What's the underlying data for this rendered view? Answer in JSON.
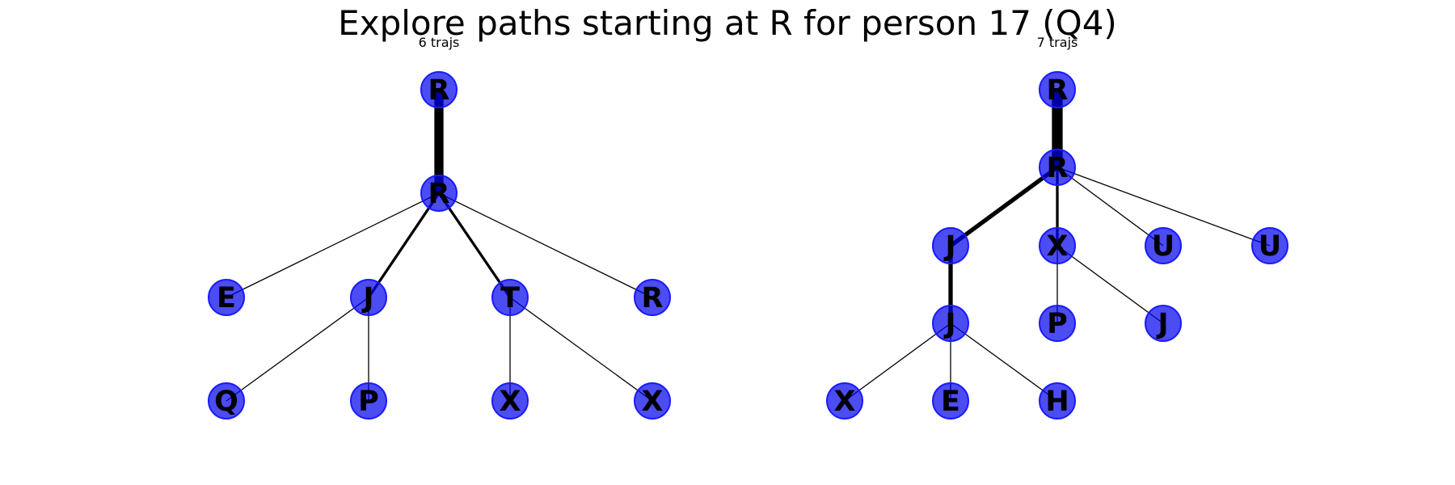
{
  "title": "Explore paths starting at R for person 17 (Q4)",
  "colors": {
    "node_fill": "#0000ee",
    "node_stroke": "#1a1aff",
    "edge": "#000000",
    "background": "#ffffff"
  },
  "trees": [
    {
      "subtitle": "6 trajs",
      "nodes": [
        {
          "id": "a0",
          "label": "R"
        },
        {
          "id": "a1",
          "label": "R"
        },
        {
          "id": "a2",
          "label": "E"
        },
        {
          "id": "a3",
          "label": "J"
        },
        {
          "id": "a4",
          "label": "T"
        },
        {
          "id": "a5",
          "label": "R"
        },
        {
          "id": "a6",
          "label": "Q"
        },
        {
          "id": "a7",
          "label": "P"
        },
        {
          "id": "a8",
          "label": "X"
        },
        {
          "id": "a9",
          "label": "X"
        }
      ],
      "edges": [
        {
          "from": "a0",
          "to": "a1",
          "weight": 6
        },
        {
          "from": "a1",
          "to": "a2",
          "weight": 1
        },
        {
          "from": "a1",
          "to": "a3",
          "weight": 2
        },
        {
          "from": "a1",
          "to": "a4",
          "weight": 2
        },
        {
          "from": "a1",
          "to": "a5",
          "weight": 1
        },
        {
          "from": "a3",
          "to": "a6",
          "weight": 1
        },
        {
          "from": "a3",
          "to": "a7",
          "weight": 1
        },
        {
          "from": "a4",
          "to": "a8",
          "weight": 1
        },
        {
          "from": "a4",
          "to": "a9",
          "weight": 1
        }
      ]
    },
    {
      "subtitle": "7 trajs",
      "nodes": [
        {
          "id": "b0",
          "label": "R"
        },
        {
          "id": "b1",
          "label": "R"
        },
        {
          "id": "b2",
          "label": "J"
        },
        {
          "id": "b3",
          "label": "X"
        },
        {
          "id": "b4",
          "label": "U"
        },
        {
          "id": "b5",
          "label": "U"
        },
        {
          "id": "b6",
          "label": "J"
        },
        {
          "id": "b7",
          "label": "P"
        },
        {
          "id": "b8",
          "label": "J"
        },
        {
          "id": "b9",
          "label": "X"
        },
        {
          "id": "b10",
          "label": "E"
        },
        {
          "id": "b11",
          "label": "H"
        }
      ],
      "edges": [
        {
          "from": "b0",
          "to": "b1",
          "weight": 7
        },
        {
          "from": "b1",
          "to": "b2",
          "weight": 3
        },
        {
          "from": "b1",
          "to": "b3",
          "weight": 2
        },
        {
          "from": "b1",
          "to": "b4",
          "weight": 1
        },
        {
          "from": "b1",
          "to": "b5",
          "weight": 1
        },
        {
          "from": "b2",
          "to": "b6",
          "weight": 3
        },
        {
          "from": "b3",
          "to": "b7",
          "weight": 1
        },
        {
          "from": "b3",
          "to": "b8",
          "weight": 1
        },
        {
          "from": "b6",
          "to": "b9",
          "weight": 1
        },
        {
          "from": "b6",
          "to": "b10",
          "weight": 1
        },
        {
          "from": "b6",
          "to": "b11",
          "weight": 1
        }
      ]
    }
  ]
}
